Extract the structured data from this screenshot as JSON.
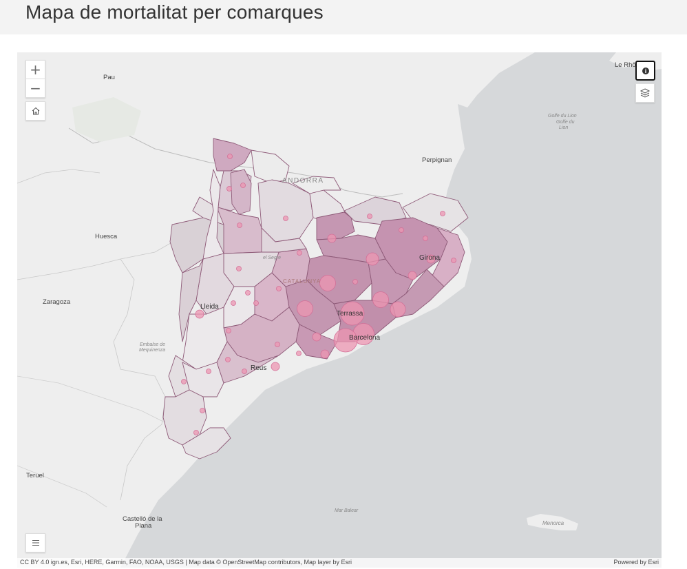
{
  "page": {
    "title": "Mapa de mortalitat per comarques"
  },
  "controls": {
    "zoom_in": "+",
    "zoom_out": "−",
    "home_icon": "home-icon",
    "info_icon": "info-icon",
    "layers_icon": "layers-icon",
    "legend_icon": "list-icon"
  },
  "labels": {
    "pau": "Pau",
    "le_rhone": "Le Rhôn",
    "golfe": "Golfe du Lion",
    "golfe2": "Golfe du",
    "golfe3": "Lion",
    "perpignan": "Perpignan",
    "andorra": "ANDORRA",
    "huesca": "Huesca",
    "el_segre": "el Segre",
    "catalunya": "CATALUNYA",
    "girona": "Girona",
    "zaragoza": "Zaragoza",
    "lleida": "Lleida",
    "terrassa": "Terrassa",
    "barcelona": "Barcelona",
    "embalse1": "Embalse de",
    "embalse2": "Mequinenza",
    "reus": "Reus",
    "teruel": "Teruel",
    "mar_balear": "Mar Balear",
    "castello1": "Castelló de la",
    "castello2": "Plana",
    "menorca": "Menorca"
  },
  "attribution": {
    "sources": "CC BY 4.0 ign.es, Esri, HERE, Garmin, FAO, NOAA, USGS | Map data © OpenStreetMap contributors, Map layer by Esri",
    "powered": "Powered by Esri"
  },
  "colors": {
    "sea": "#d5d7d9",
    "land": "#eeeeee",
    "marker": "#e891ad",
    "region_dark": "#c293ae",
    "region_mid": "#d9b7ca",
    "region_light": "#e3d9e0"
  }
}
